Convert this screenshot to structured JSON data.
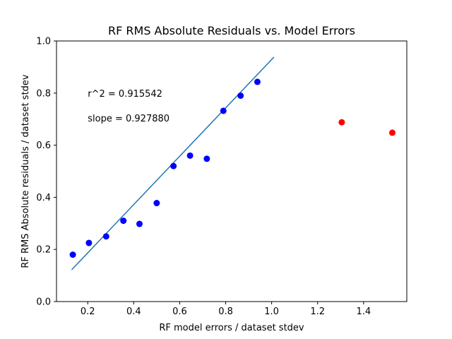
{
  "chart_data": {
    "type": "scatter",
    "title": "RF RMS Absolute Residuals vs. Model Errors",
    "xlabel": "RF model errors / dataset stdev",
    "ylabel": "RF RMS Absolute residuals / dataset stdev",
    "xlim": [
      0.064,
      1.588
    ],
    "ylim": [
      0.0,
      1.0
    ],
    "xticks": [
      0.2,
      0.4,
      0.6,
      0.8,
      1.0,
      1.2,
      1.4
    ],
    "yticks": [
      0.0,
      0.2,
      0.4,
      0.6,
      0.8,
      1.0
    ],
    "grid": false,
    "series": [
      {
        "color": "#0000ff",
        "x": [
          0.135,
          0.205,
          0.28,
          0.355,
          0.425,
          0.5,
          0.573,
          0.645,
          0.718,
          0.79,
          0.865,
          0.938
        ],
        "y": [
          0.18,
          0.225,
          0.25,
          0.31,
          0.298,
          0.378,
          0.52,
          0.56,
          0.548,
          0.732,
          0.79,
          0.843
        ]
      },
      {
        "color": "#ff0000",
        "x": [
          1.305,
          1.525
        ],
        "y": [
          0.688,
          0.648
        ]
      }
    ],
    "fit_line": {
      "color": "#1f77b4",
      "x": [
        0.13,
        1.01
      ],
      "y": [
        0.122,
        0.938
      ]
    },
    "annotations": [
      {
        "text": "r^2 = 0.915542",
        "x": 0.2,
        "y": 0.8
      },
      {
        "text": "slope = 0.927880",
        "x": 0.2,
        "y": 0.705
      }
    ]
  }
}
